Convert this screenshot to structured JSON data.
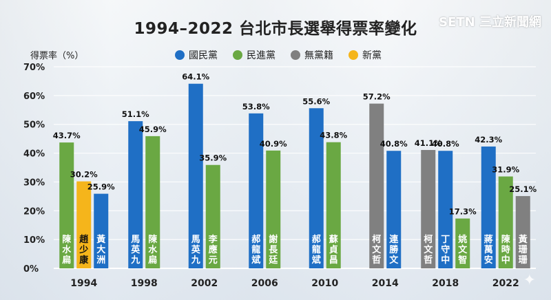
{
  "title": "1994–2022 台北市長選舉得票率變化",
  "watermark": "SETN 三立新聞網",
  "chart_data": {
    "type": "bar",
    "ylabel": "得票率（%）",
    "ylim": [
      0,
      70
    ],
    "yticks": [
      "0%",
      "10%",
      "20%",
      "30%",
      "40%",
      "50%",
      "60%",
      "70%"
    ],
    "grid": true,
    "legend_position": "top",
    "parties": [
      {
        "name": "國民黨",
        "color": "#1f6fc5"
      },
      {
        "name": "民進黨",
        "color": "#6aa843"
      },
      {
        "name": "無黨籍",
        "color": "#808080"
      },
      {
        "name": "新黨",
        "color": "#f5b51b"
      }
    ],
    "years": [
      {
        "year": "1994",
        "candidates": [
          {
            "name": "陳水扁",
            "party": 1,
            "value": 43.7,
            "label": "43.7%"
          },
          {
            "name": "趙少康",
            "party": 3,
            "value": 30.2,
            "label": "30.2%"
          },
          {
            "name": "黃大洲",
            "party": 0,
            "value": 25.9,
            "label": "25.9%"
          }
        ]
      },
      {
        "year": "1998",
        "candidates": [
          {
            "name": "馬英九",
            "party": 0,
            "value": 51.1,
            "label": "51.1%"
          },
          {
            "name": "陳水扁",
            "party": 1,
            "value": 45.9,
            "label": "45.9%"
          }
        ]
      },
      {
        "year": "2002",
        "candidates": [
          {
            "name": "馬英九",
            "party": 0,
            "value": 64.1,
            "label": "64.1%"
          },
          {
            "name": "李應元",
            "party": 1,
            "value": 35.9,
            "label": "35.9%"
          }
        ]
      },
      {
        "year": "2006",
        "candidates": [
          {
            "name": "郝龍斌",
            "party": 0,
            "value": 53.8,
            "label": "53.8%"
          },
          {
            "name": "謝長廷",
            "party": 1,
            "value": 40.9,
            "label": "40.9%"
          }
        ]
      },
      {
        "year": "2010",
        "candidates": [
          {
            "name": "郝龍斌",
            "party": 0,
            "value": 55.6,
            "label": "55.6%"
          },
          {
            "name": "蘇貞昌",
            "party": 1,
            "value": 43.8,
            "label": "43.8%"
          }
        ]
      },
      {
        "year": "2014",
        "candidates": [
          {
            "name": "柯文哲",
            "party": 2,
            "value": 57.2,
            "label": "57.2%"
          },
          {
            "name": "連勝文",
            "party": 0,
            "value": 40.8,
            "label": "40.8%"
          }
        ]
      },
      {
        "year": "2018",
        "candidates": [
          {
            "name": "柯文哲",
            "party": 2,
            "value": 41.1,
            "label": "41.1%"
          },
          {
            "name": "丁守中",
            "party": 0,
            "value": 40.8,
            "label": "40.8%"
          },
          {
            "name": "姚文智",
            "party": 1,
            "value": 17.3,
            "label": "17.3%"
          }
        ]
      },
      {
        "year": "2022",
        "candidates": [
          {
            "name": "蔣萬安",
            "party": 0,
            "value": 42.3,
            "label": "42.3%"
          },
          {
            "name": "陳時中",
            "party": 1,
            "value": 31.9,
            "label": "31.9%"
          },
          {
            "name": "黃珊珊",
            "party": 2,
            "value": 25.1,
            "label": "25.1%"
          }
        ]
      }
    ]
  }
}
